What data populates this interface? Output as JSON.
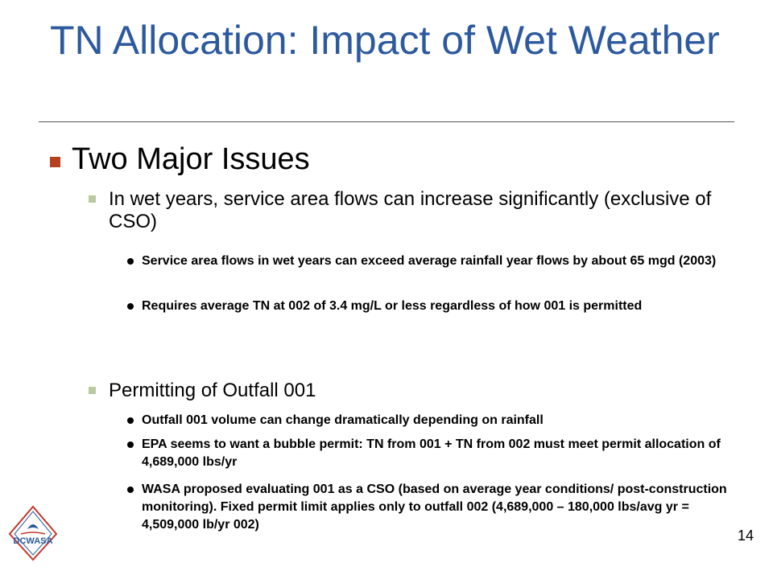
{
  "slide": {
    "title": "TN Allocation: Impact of Wet Weather",
    "heading": "Two Major Issues",
    "issue1": {
      "text": "In wet years, service area flows can increase significantly (exclusive of CSO)",
      "points": [
        "Service area flows in wet years can exceed average rainfall year flows by about 65 mgd (2003)",
        "Requires average TN at 002 of 3.4 mg/L or less regardless of how 001 is permitted"
      ]
    },
    "issue2": {
      "text": "Permitting of Outfall 001",
      "points": [
        "Outfall 001 volume can change dramatically depending on rainfall",
        "EPA seems to want a bubble permit: TN from 001 + TN from 002 must meet permit allocation of 4,689,000 lbs/yr",
        "WASA proposed evaluating  001 as a CSO (based on average year conditions/ post-construction monitoring).  Fixed permit limit applies only to outfall 002 (4,689,000 – 180,000 lbs/avg yr = 4,509,000 lb/yr 002)"
      ]
    },
    "page_number": "14"
  },
  "logo": {
    "text": "DCWASA",
    "icon": "dcwasa-logo-icon"
  },
  "colors": {
    "title": "#2d5a9e",
    "level1_marker": "#b5401d",
    "level2_marker": "#b9c9a0",
    "logo_red": "#c0392b",
    "logo_blue": "#2d5a9e"
  }
}
